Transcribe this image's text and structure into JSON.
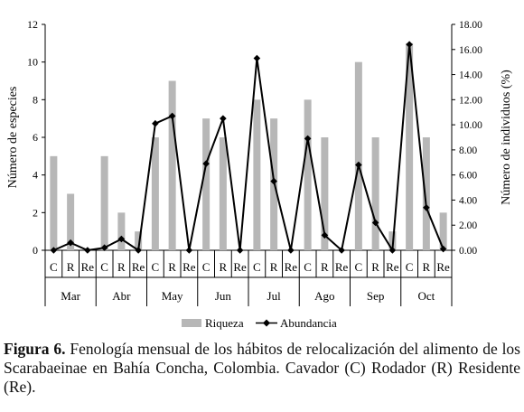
{
  "chart_data": {
    "type": "bar+line",
    "months": [
      "Mar",
      "Abr",
      "May",
      "Jun",
      "Jul",
      "Ago",
      "Sep",
      "Oct"
    ],
    "sublabels": [
      "C",
      "R",
      "Re"
    ],
    "left_axis": {
      "label": "Número de especies",
      "ylim": [
        0,
        12
      ],
      "ticks": [
        "0",
        "2",
        "4",
        "6",
        "8",
        "10",
        "12"
      ]
    },
    "right_axis": {
      "label": "Número de individuos (%)",
      "ylim": [
        0,
        18
      ],
      "ticks": [
        "0.00",
        "2.00",
        "4.00",
        "6.00",
        "8.00",
        "10.00",
        "12.00",
        "14.00",
        "16.00",
        "18.00"
      ]
    },
    "series": [
      {
        "name": "Riqueza",
        "kind": "bar",
        "axis": "left",
        "color": "#b7b7b7",
        "values": [
          5,
          3,
          0,
          5,
          2,
          1,
          6,
          9,
          0,
          7,
          6,
          0,
          8,
          7,
          0,
          8,
          6,
          0,
          10,
          6,
          1,
          11,
          6,
          2
        ]
      },
      {
        "name": "Abundancia",
        "kind": "line",
        "axis": "right",
        "color": "#000000",
        "values": [
          0.0,
          0.6,
          0.0,
          0.2,
          0.9,
          0.0,
          10.1,
          10.7,
          0.0,
          6.9,
          10.5,
          0.0,
          15.3,
          5.5,
          0.0,
          8.9,
          1.2,
          0.0,
          6.8,
          2.2,
          0.0,
          16.4,
          3.4,
          0.1
        ]
      }
    ],
    "legend": {
      "placement": "bottom",
      "items": [
        "Riqueza",
        "Abundancia"
      ]
    },
    "grid": false
  },
  "caption": {
    "label": "Figura 6.",
    "text": "Fenología mensual de los hábitos de relocalización del alimento de los Scarabaeinae en Bahía Concha, Colombia. Cavador (C) Rodador (R) Residente (Re)."
  }
}
